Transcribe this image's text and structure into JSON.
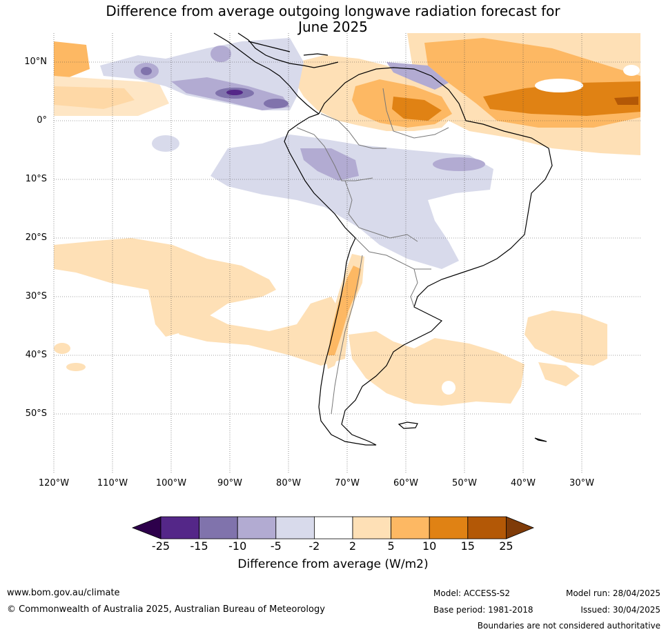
{
  "title_line1": "Difference from average outgoing longwave radiation forecast for",
  "title_line2": "June 2025",
  "lat_labels": [
    "10°N",
    "0°",
    "10°S",
    "20°S",
    "30°S",
    "40°S",
    "50°S"
  ],
  "lon_labels": [
    "120°W",
    "110°W",
    "100°W",
    "90°W",
    "80°W",
    "70°W",
    "60°W",
    "50°W",
    "40°W",
    "30°W"
  ],
  "colorbar": {
    "ticks": [
      "-25",
      "-15",
      "-10",
      "-5",
      "-2",
      "2",
      "5",
      "10",
      "15",
      "25"
    ],
    "colors": [
      "#2d004b",
      "#542788",
      "#8073ac",
      "#b2abd2",
      "#d8daeb",
      "#ffffff",
      "#fee0b6",
      "#fdb863",
      "#e08214",
      "#b35806",
      "#7f3b08"
    ],
    "label": "Difference from average (W/m2)"
  },
  "footer": {
    "url": "www.bom.gov.au/climate",
    "copyright": "© Commonwealth of Australia 2025, Australian Bureau of Meteorology",
    "model": "Model: ACCESS-S2",
    "base_period": "Base period: 1981-2018",
    "model_run": "Model run: 28/04/2025",
    "issued": "Issued: 30/04/2025",
    "disclaimer": "Boundaries are not considered authoritative"
  }
}
